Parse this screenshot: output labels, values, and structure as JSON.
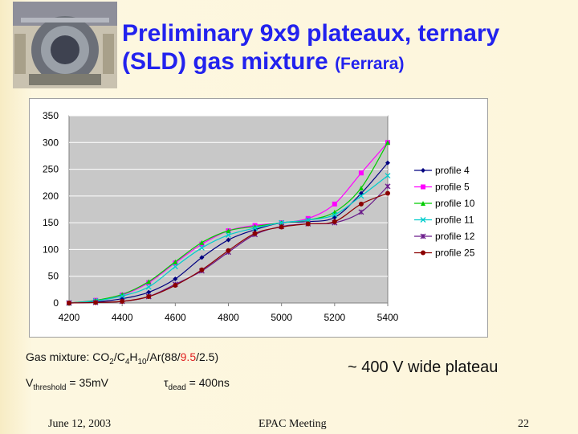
{
  "slide": {
    "title_line1": "Preliminary 9x9 plateaux, ternary",
    "title_line2": "(SLD) gas mixture",
    "title_suffix": "(Ferrara)"
  },
  "info": {
    "gas_prefix": "Gas mixture: CO",
    "gas_s1": "2",
    "gas_mid1": "/C",
    "gas_s2": "4",
    "gas_mid2": "H",
    "gas_s3": "10",
    "gas_mid3": "/Ar(88/",
    "gas_red": "9.5",
    "gas_end": "/2.5)",
    "vthr_prefix": "V",
    "vthr_sub": "threshold",
    "vthr_value": " = 35mV",
    "tdead_prefix": "τ",
    "tdead_sub": "dead",
    "tdead_value": " = 400ns",
    "plateau": "~ 400 V wide plateau"
  },
  "footer": {
    "date": "June 12, 2003",
    "event": "EPAC  Meeting",
    "page": "22"
  },
  "colors": {
    "title": "#2222ee",
    "accent_red": "#e02020"
  },
  "chart_data": {
    "type": "line",
    "title": "",
    "xlabel": "",
    "ylabel": "",
    "xlim": [
      4200,
      5400
    ],
    "ylim": [
      0,
      350
    ],
    "xticks": [
      "4200",
      "4400",
      "4600",
      "4800",
      "5000",
      "5200",
      "5400"
    ],
    "yticks": [
      "0",
      "50",
      "100",
      "150",
      "200",
      "250",
      "300",
      "350"
    ],
    "grid": "horizontal",
    "legend_position": "right",
    "series": [
      {
        "name": "profile 4",
        "color": "#000080",
        "marker": "diamond",
        "x": [
          4200,
          4300,
          4400,
          4500,
          4600,
          4700,
          4800,
          4900,
          5000,
          5100,
          5200,
          5300,
          5400
        ],
        "y": [
          0,
          2,
          8,
          20,
          45,
          85,
          118,
          137,
          150,
          152,
          160,
          205,
          262
        ]
      },
      {
        "name": "profile 5",
        "color": "#ff00ff",
        "marker": "square",
        "x": [
          4200,
          4300,
          4400,
          4500,
          4600,
          4700,
          4800,
          4900,
          5000,
          5100,
          5200,
          5300,
          5400
        ],
        "y": [
          0,
          5,
          15,
          38,
          75,
          110,
          135,
          145,
          150,
          158,
          185,
          243,
          300
        ]
      },
      {
        "name": "profile 10",
        "color": "#00cc00",
        "marker": "triangle",
        "x": [
          4200,
          4300,
          4400,
          4500,
          4600,
          4700,
          4800,
          4900,
          5000,
          5100,
          5200,
          5300,
          5400
        ],
        "y": [
          0,
          5,
          16,
          40,
          77,
          113,
          135,
          143,
          150,
          155,
          170,
          215,
          300
        ]
      },
      {
        "name": "profile 11",
        "color": "#00cccc",
        "marker": "x",
        "x": [
          4200,
          4300,
          4400,
          4500,
          4600,
          4700,
          4800,
          4900,
          5000,
          5100,
          5200,
          5300,
          5400
        ],
        "y": [
          0,
          4,
          13,
          30,
          68,
          103,
          127,
          140,
          150,
          155,
          165,
          200,
          238
        ]
      },
      {
        "name": "profile 12",
        "color": "#6a1a8a",
        "marker": "star",
        "x": [
          4200,
          4300,
          4400,
          4500,
          4600,
          4700,
          4800,
          4900,
          5000,
          5100,
          5200,
          5300,
          5400
        ],
        "y": [
          0,
          1,
          3,
          12,
          35,
          60,
          95,
          128,
          143,
          148,
          150,
          170,
          218
        ]
      },
      {
        "name": "profile 25",
        "color": "#8b0000",
        "marker": "circle",
        "x": [
          4200,
          4300,
          4400,
          4500,
          4600,
          4700,
          4800,
          4900,
          5000,
          5100,
          5200,
          5300,
          5400
        ],
        "y": [
          0,
          1,
          3,
          12,
          33,
          62,
          98,
          130,
          142,
          148,
          152,
          185,
          205
        ]
      }
    ]
  }
}
